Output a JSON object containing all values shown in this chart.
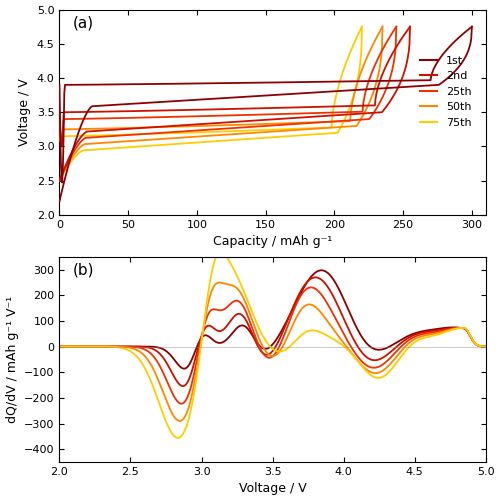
{
  "title_a": "(a)",
  "title_b": "(b)",
  "colors": [
    "#8B0000",
    "#CC1100",
    "#EE3300",
    "#FF8800",
    "#FFCC00"
  ],
  "legend_labels": [
    "1st",
    "2nd",
    "25th",
    "50th",
    "75th"
  ],
  "panel_a": {
    "xlabel": "Capacity / mAh g⁻¹",
    "ylabel": "Voltage / V",
    "xlim": [
      0,
      310
    ],
    "ylim": [
      2.0,
      5.0
    ],
    "xticks": [
      0,
      50,
      100,
      150,
      200,
      250,
      300
    ],
    "yticks": [
      2.0,
      2.5,
      3.0,
      3.5,
      4.0,
      4.5,
      5.0
    ]
  },
  "panel_b": {
    "xlabel": "Voltage / V",
    "ylabel": "dQ/dV / mAh g⁻¹ V⁻¹",
    "xlim": [
      2.0,
      5.0
    ],
    "ylim": [
      -450,
      350
    ],
    "xticks": [
      2.0,
      2.5,
      3.0,
      3.5,
      4.0,
      4.5,
      5.0
    ],
    "yticks": [
      -400,
      -300,
      -200,
      -100,
      0,
      100,
      200,
      300
    ]
  }
}
